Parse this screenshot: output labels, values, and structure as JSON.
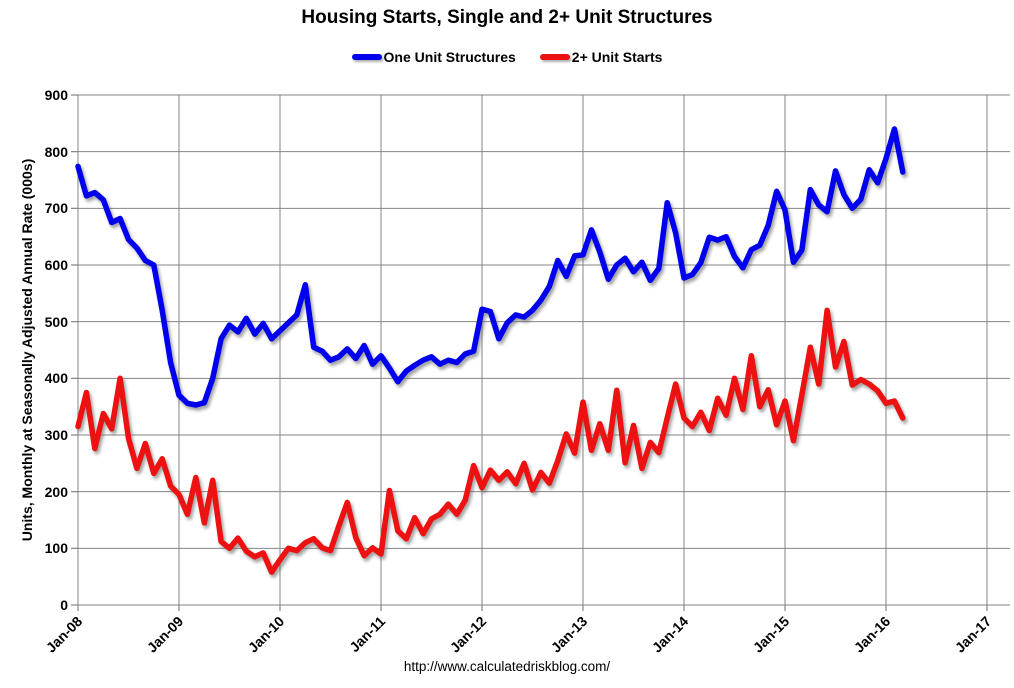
{
  "page": {
    "footer_url": "http://www.calculatedriskblog.com/"
  },
  "chart_data": {
    "type": "line",
    "title": "Housing Starts, Single and 2+ Unit Structures",
    "ylabel": "Units, Monthly at Seasonally Adjusted Annual Rate (000s)",
    "xlabel": "",
    "grid": true,
    "legend_position": "top",
    "ylim": [
      0,
      900
    ],
    "y_ticks": [
      0,
      100,
      200,
      300,
      400,
      500,
      600,
      700,
      800,
      900
    ],
    "x_tick_labels": [
      "Jan-08",
      "Jan-09",
      "Jan-10",
      "Jan-11",
      "Jan-12",
      "Jan-13",
      "Jan-14",
      "Jan-15",
      "Jan-16",
      "Jan-17"
    ],
    "x_unit": "month",
    "x_start": "Jan-08",
    "x_end": "Mar-16",
    "series": [
      {
        "name": "One Unit Structures",
        "color": "#0000EE",
        "values": [
          774,
          722,
          728,
          715,
          675,
          682,
          645,
          630,
          608,
          600,
          520,
          428,
          370,
          356,
          353,
          357,
          400,
          470,
          494,
          482,
          506,
          478,
          497,
          470,
          484,
          498,
          512,
          565,
          455,
          448,
          432,
          438,
          452,
          435,
          458,
          425,
          440,
          418,
          394,
          413,
          423,
          432,
          438,
          425,
          432,
          428,
          443,
          448,
          522,
          518,
          470,
          498,
          512,
          508,
          520,
          538,
          562,
          608,
          580,
          616,
          618,
          662,
          623,
          575,
          600,
          612,
          588,
          605,
          573,
          594,
          710,
          657,
          577,
          583,
          604,
          649,
          644,
          650,
          615,
          595,
          627,
          635,
          670,
          730,
          697,
          605,
          626,
          733,
          706,
          694,
          766,
          724,
          700,
          716,
          768,
          745,
          788,
          840,
          764
        ]
      },
      {
        "name": "2+ Unit Starts",
        "color": "#EE1111",
        "values": [
          315,
          375,
          276,
          338,
          311,
          400,
          294,
          241,
          285,
          232,
          258,
          210,
          195,
          160,
          225,
          145,
          220,
          112,
          100,
          118,
          95,
          85,
          92,
          58,
          80,
          100,
          96,
          110,
          117,
          101,
          96,
          140,
          181,
          119,
          87,
          101,
          90,
          202,
          131,
          117,
          154,
          126,
          152,
          160,
          178,
          160,
          185,
          246,
          207,
          238,
          220,
          235,
          214,
          250,
          203,
          234,
          215,
          255,
          302,
          268,
          358,
          273,
          320,
          273,
          379,
          251,
          317,
          241,
          287,
          269,
          330,
          390,
          330,
          315,
          340,
          308,
          365,
          335,
          400,
          345,
          440,
          350,
          380,
          318,
          360,
          290,
          370,
          455,
          390,
          520,
          420,
          465,
          388,
          398,
          390,
          378,
          356,
          360,
          330
        ]
      }
    ]
  }
}
